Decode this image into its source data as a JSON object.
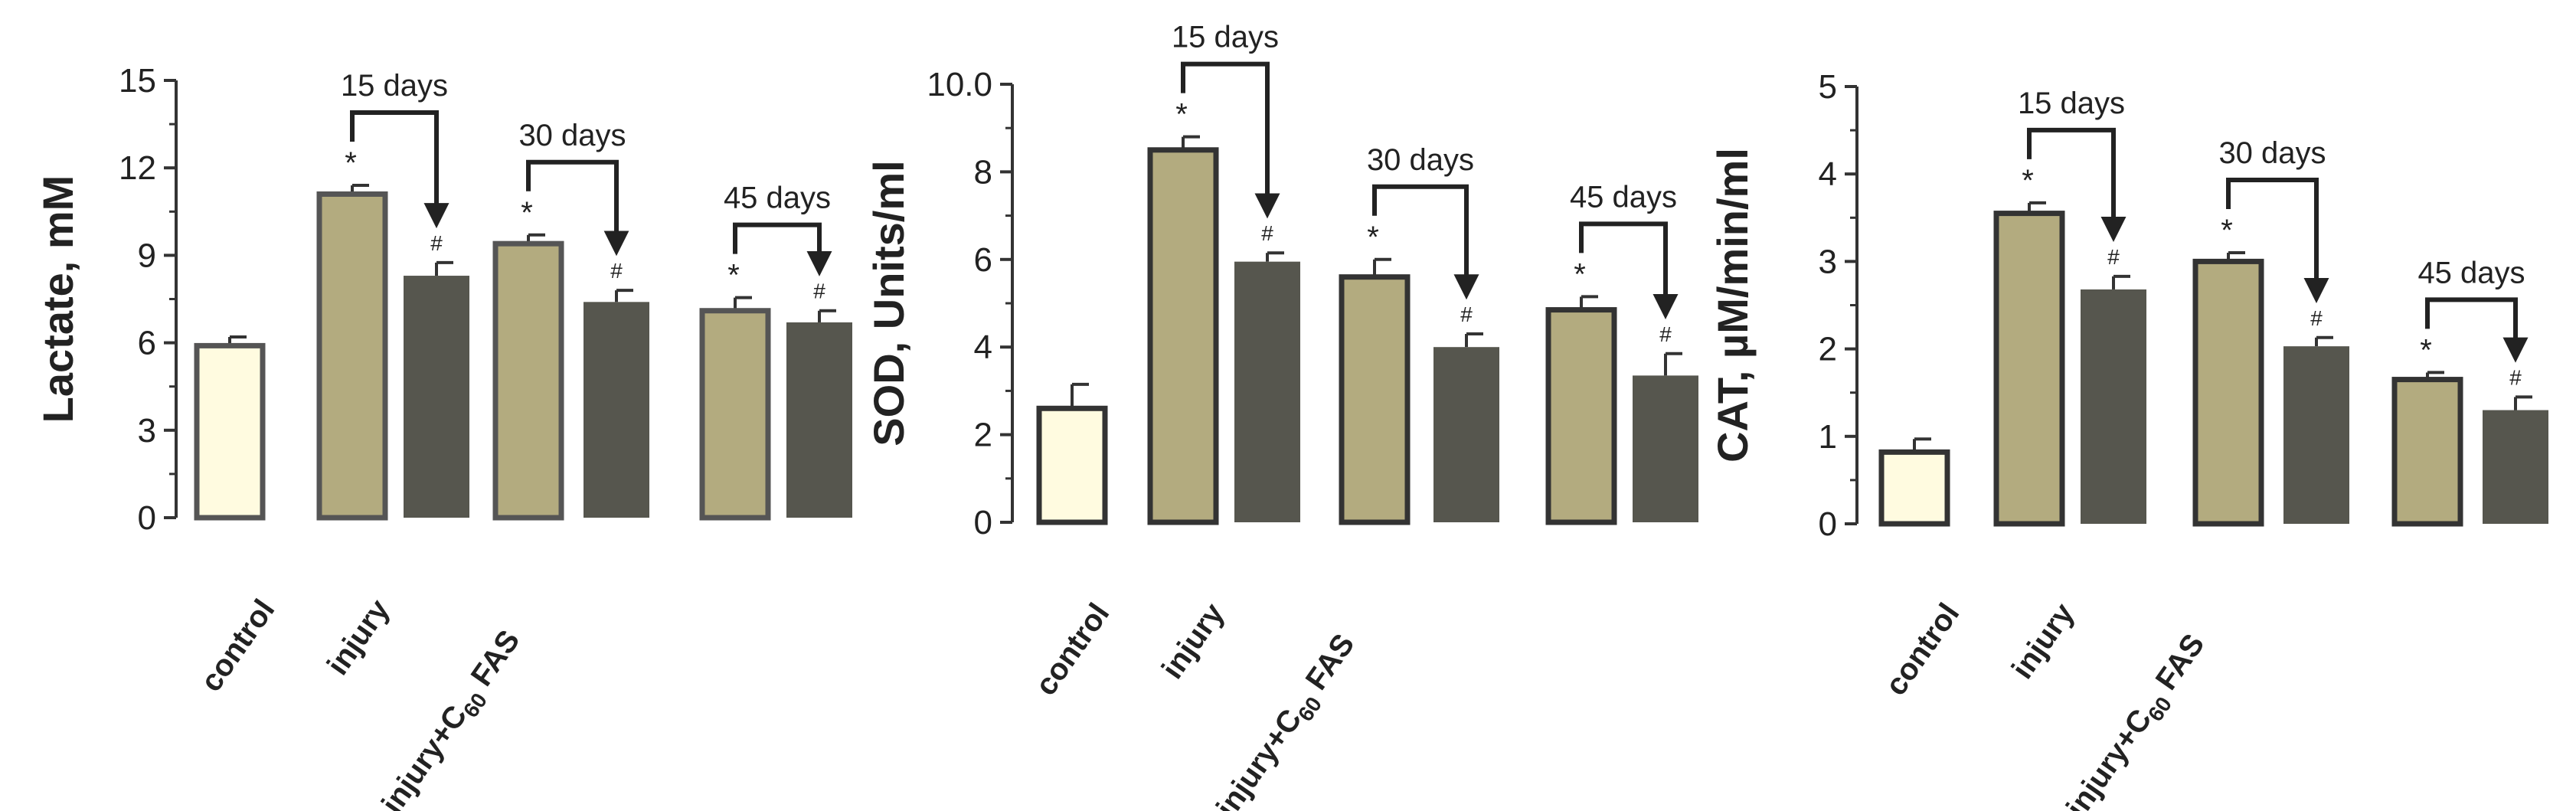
{
  "colors": {
    "control_fill": "#fffbe0",
    "injury_fill": "#b3ab7f",
    "treated_fill": "#56564e",
    "outline": "#555555",
    "outline_dark": "#333333",
    "axis": "#333333"
  },
  "category_labels": [
    {
      "text": "control"
    },
    {
      "text": "injury"
    },
    {
      "text": "injury+C",
      "sub": "60",
      "tail": " FAS"
    }
  ],
  "chart_data": [
    {
      "type": "bar",
      "ylabel": "Lactate, mM",
      "ylim": [
        0,
        15
      ],
      "yticks": [
        0,
        3,
        6,
        9,
        12,
        15
      ],
      "ytick_labels": [
        "0",
        "3",
        "6",
        "9",
        "12",
        "15"
      ],
      "control": {
        "value": 5.9,
        "error": 0.3
      },
      "groups": [
        {
          "period": "15 days",
          "injury": {
            "value": 11.1,
            "error": 0.3,
            "mark": "*"
          },
          "treated": {
            "value": 8.3,
            "error": 0.45,
            "mark": "#"
          }
        },
        {
          "period": "30 days",
          "injury": {
            "value": 9.4,
            "error": 0.3,
            "mark": "*"
          },
          "treated": {
            "value": 7.4,
            "error": 0.4,
            "mark": "#"
          }
        },
        {
          "period": "45 days",
          "injury": {
            "value": 7.1,
            "error": 0.45,
            "mark": "*"
          },
          "treated": {
            "value": 6.7,
            "error": 0.4,
            "mark": "#"
          }
        }
      ]
    },
    {
      "type": "bar",
      "ylabel": "SOD, Units/ml",
      "ylim": [
        0,
        10
      ],
      "yticks": [
        0,
        2,
        4,
        6,
        8,
        10
      ],
      "ytick_labels": [
        "0",
        "2",
        "4",
        "6",
        "8",
        "10.0"
      ],
      "control": {
        "value": 2.6,
        "error": 0.55
      },
      "groups": [
        {
          "period": "15 days",
          "injury": {
            "value": 8.5,
            "error": 0.3,
            "mark": "*"
          },
          "treated": {
            "value": 5.95,
            "error": 0.2,
            "mark": "#"
          }
        },
        {
          "period": "30 days",
          "injury": {
            "value": 5.6,
            "error": 0.4,
            "mark": "*"
          },
          "treated": {
            "value": 4.0,
            "error": 0.3,
            "mark": "#"
          }
        },
        {
          "period": "45 days",
          "injury": {
            "value": 4.85,
            "error": 0.3,
            "mark": "*"
          },
          "treated": {
            "value": 3.35,
            "error": 0.5,
            "mark": "#"
          }
        }
      ]
    },
    {
      "type": "bar",
      "ylabel": "CAT, µM/min/ml",
      "ylim": [
        0,
        5
      ],
      "yticks": [
        0,
        1,
        2,
        3,
        4,
        5
      ],
      "ytick_labels": [
        "0",
        "1",
        "2",
        "3",
        "4",
        "5"
      ],
      "control": {
        "value": 0.82,
        "error": 0.15
      },
      "groups": [
        {
          "period": "15 days",
          "injury": {
            "value": 3.55,
            "error": 0.12,
            "mark": "*"
          },
          "treated": {
            "value": 2.68,
            "error": 0.15,
            "mark": "#"
          }
        },
        {
          "period": "30 days",
          "injury": {
            "value": 3.0,
            "error": 0.1,
            "mark": "*"
          },
          "treated": {
            "value": 2.03,
            "error": 0.1,
            "mark": "#"
          }
        },
        {
          "period": "45 days",
          "injury": {
            "value": 1.65,
            "error": 0.08,
            "mark": "*"
          },
          "treated": {
            "value": 1.3,
            "error": 0.15,
            "mark": "#"
          }
        }
      ]
    }
  ]
}
